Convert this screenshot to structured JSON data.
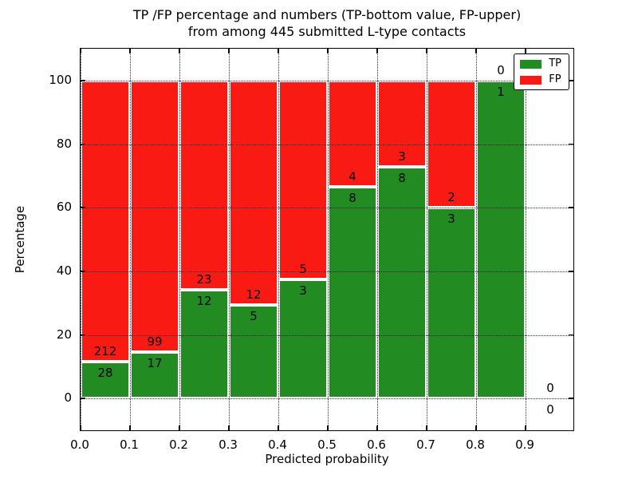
{
  "figure": {
    "title_line1": "TP /FP percentage and numbers (TP-bottom value, FP-upper)",
    "title_line2": "from among 445 submitted L-type contacts",
    "xlabel": "Predicted probability",
    "ylabel": "Percentage"
  },
  "chart_data": {
    "type": "bar",
    "stacked": true,
    "title": "TP /FP percentage and numbers (TP-bottom value, FP-upper)\nfrom among 445 submitted L-type contacts",
    "xlabel": "Predicted probability",
    "ylabel": "Percentage",
    "total_contacts": 445,
    "xlim": [
      0.0,
      1.0
    ],
    "ylim": [
      -10.5,
      110
    ],
    "grid": true,
    "colors": {
      "tp": "#228b22",
      "fp": "#fa1a14"
    },
    "x_ticks": [
      {
        "value": 0.0,
        "label": "0.0"
      },
      {
        "value": 0.1,
        "label": "0.1"
      },
      {
        "value": 0.2,
        "label": "0.2"
      },
      {
        "value": 0.3,
        "label": "0.3"
      },
      {
        "value": 0.4,
        "label": "0.4"
      },
      {
        "value": 0.5,
        "label": "0.5"
      },
      {
        "value": 0.6,
        "label": "0.6"
      },
      {
        "value": 0.7,
        "label": "0.7"
      },
      {
        "value": 0.8,
        "label": "0.8"
      },
      {
        "value": 0.9,
        "label": "0.9"
      }
    ],
    "y_ticks": [
      {
        "value": 0,
        "label": "0"
      },
      {
        "value": 20,
        "label": "20"
      },
      {
        "value": 40,
        "label": "40"
      },
      {
        "value": 60,
        "label": "60"
      },
      {
        "value": 80,
        "label": "80"
      },
      {
        "value": 100,
        "label": "100"
      }
    ],
    "legend": {
      "position": "upper right",
      "entries": [
        {
          "label": "TP",
          "color": "#228b22"
        },
        {
          "label": "FP",
          "color": "#fa1a14"
        }
      ]
    },
    "bins": [
      {
        "range": [
          0.0,
          0.1
        ],
        "tp": 28,
        "fp": 212
      },
      {
        "range": [
          0.1,
          0.2
        ],
        "tp": 17,
        "fp": 99
      },
      {
        "range": [
          0.2,
          0.3
        ],
        "tp": 12,
        "fp": 23
      },
      {
        "range": [
          0.3,
          0.4
        ],
        "tp": 5,
        "fp": 12
      },
      {
        "range": [
          0.4,
          0.5
        ],
        "tp": 3,
        "fp": 5
      },
      {
        "range": [
          0.5,
          0.6
        ],
        "tp": 8,
        "fp": 4
      },
      {
        "range": [
          0.6,
          0.7
        ],
        "tp": 8,
        "fp": 3
      },
      {
        "range": [
          0.7,
          0.8
        ],
        "tp": 3,
        "fp": 2
      },
      {
        "range": [
          0.8,
          0.9
        ],
        "tp": 1,
        "fp": 0
      },
      {
        "range": [
          0.9,
          1.0
        ],
        "tp": 0,
        "fp": 0
      }
    ]
  }
}
